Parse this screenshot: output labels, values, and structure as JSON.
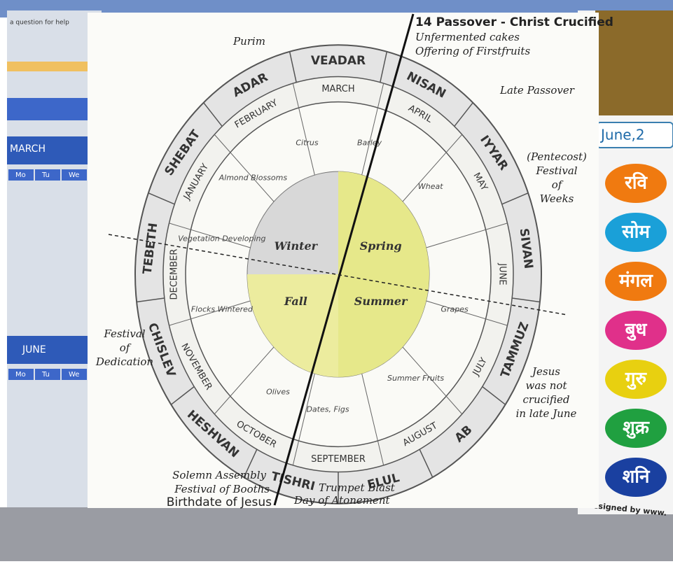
{
  "left_panel": {
    "help": "a question for help",
    "calendars": [
      {
        "title": "MARCH",
        "days": [
          "Mo",
          "Tu",
          "We"
        ]
      },
      {
        "title": "JUNE",
        "days": [
          "Mo",
          "Tu",
          "We"
        ]
      }
    ]
  },
  "wheel": {
    "hebrew_months": [
      "VEADAR",
      "NISAN",
      "IYYAR",
      "SIVAN",
      "TAMMUZ",
      "AB",
      "ELUL",
      "TISHRI",
      "HESHVAN",
      "CHISLEV",
      "TEBETH",
      "SHEBAT",
      "ADAR"
    ],
    "months": [
      "MARCH",
      "APRIL",
      "MAY",
      "JUNE",
      "JULY",
      "AUGUST",
      "SEPTEMBER",
      "OCTOBER",
      "NOVEMBER",
      "DECEMBER",
      "JANUARY",
      "FEBRUARY"
    ],
    "crops": [
      "Barley",
      "Wheat",
      "Grapes",
      "Summer Fruits",
      "Dates, Figs",
      "Olives",
      "Flocks Wintered",
      "Vegetation Developing",
      "Almond Blossoms",
      "Citrus"
    ],
    "seasons": [
      "Winter",
      "Spring",
      "Summer",
      "Fall"
    ]
  },
  "annotations": {
    "passover": "14 Passover - Christ Crucified",
    "unfermented": "Unfermented cakes",
    "firstfruits": "Offering of Firstfruits",
    "purim": "Purim",
    "late_passover": "Late Passover",
    "pentecost": [
      "(Pentecost)",
      "Festival",
      "of",
      "Weeks"
    ],
    "dedication": [
      "Festival",
      "of",
      "Dedication"
    ],
    "jesus": [
      "Jesus",
      "was not",
      "crucified",
      "in late June"
    ],
    "solemn": "Solemn Assembly",
    "booths": "Festival of Booths",
    "birthdate": "Birthdate of Jesus",
    "trumpet": "Trumpet Blast",
    "atonement": "Day of Atonement"
  },
  "right_panel": {
    "date": "June,2",
    "days": [
      "रवि",
      "सोम",
      "मंगल",
      "बुध",
      "गुरु",
      "शुक्र",
      "शनि"
    ],
    "credit": "Designed by www."
  }
}
